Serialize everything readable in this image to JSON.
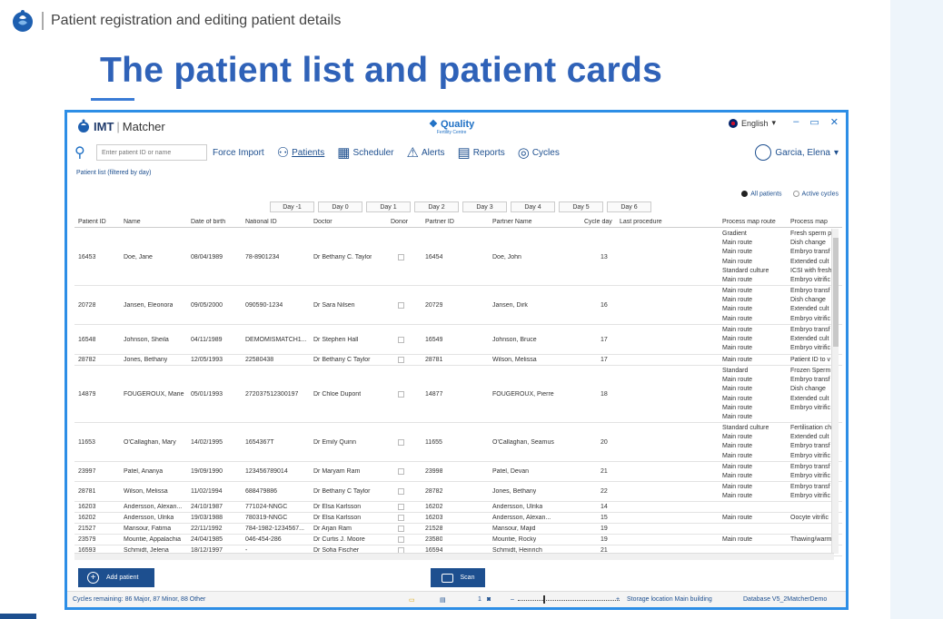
{
  "slide": {
    "subtitle": "Patient registration and editing patient details",
    "title": "The patient list and patient cards"
  },
  "app": {
    "brand_main": "IMT",
    "brand_sub": "Matcher",
    "quality_title": "Quality",
    "quality_sub": "Fertility Centre",
    "language": "English",
    "search_placeholder": "Enter patient ID or name",
    "force_import": "Force Import",
    "nav": [
      {
        "label": "Patients",
        "icon": "patients-icon"
      },
      {
        "label": "Scheduler",
        "icon": "calendar-icon"
      },
      {
        "label": "Alerts",
        "icon": "alert-icon"
      },
      {
        "label": "Reports",
        "icon": "report-icon"
      },
      {
        "label": "Cycles",
        "icon": "cycles-icon"
      }
    ],
    "user": "Garcia, Elena",
    "list_caption": "Patient list (filtered by day)",
    "filter_all": "All patients",
    "filter_active": "Active cycles",
    "days": [
      "Day -1",
      "Day 0",
      "Day 1",
      "Day 2",
      "Day 3",
      "Day 4",
      "Day 5",
      "Day 6"
    ],
    "columns": [
      "Patient ID",
      "Name",
      "Date of birth",
      "National ID",
      "Doctor",
      "Donor",
      "Partner ID",
      "Partner Name",
      "Cycle day",
      "Last procedure",
      "Process map route",
      "Process map"
    ],
    "rows": [
      {
        "id": "16453",
        "name": "Doe, Jane",
        "dob": "08/04/1989",
        "nid": "78-8901234",
        "doctor": "Dr Bethany C. Taylor",
        "pid": "16454",
        "pname": "Doe, John",
        "day": "13",
        "routes": [
          "Gradient",
          "Main route",
          "Main route",
          "Main route",
          "Standard culture",
          "Main route"
        ],
        "maps": [
          "Fresh sperm p",
          "Dish change",
          "Embryo transf",
          "Extended cult",
          "ICSI with fresh",
          "Embryo vitrific"
        ]
      },
      {
        "id": "20728",
        "name": "Jansen, Eleonora",
        "dob": "09/05/2000",
        "nid": "090590-1234",
        "doctor": "Dr Sara Nilsen",
        "pid": "20729",
        "pname": "Jansen, Dirk",
        "day": "16",
        "routes": [
          "Main route",
          "Main route",
          "Main route",
          "Main route"
        ],
        "maps": [
          "Embryo transf",
          "Dish change",
          "Extended cult",
          "Embryo vitrific"
        ]
      },
      {
        "id": "16548",
        "name": "Johnson, Sheila",
        "dob": "04/11/1989",
        "nid": "DEMOMISMATCH1...",
        "doctor": "Dr Stephen Hall",
        "pid": "16549",
        "pname": "Johnson, Bruce",
        "day": "17",
        "routes": [
          "Main route",
          "Main route",
          "Main route"
        ],
        "maps": [
          "Embryo transf",
          "Extended cult",
          "Embryo vitrific"
        ]
      },
      {
        "id": "28782",
        "name": "Jones, Bethany",
        "dob": "12/05/1993",
        "nid": "22580438",
        "doctor": "Dr Bethany C Taylor",
        "pid": "28781",
        "pname": "Wilson, Melissa",
        "day": "17",
        "routes": [
          "Main route"
        ],
        "maps": [
          "Patient ID to v"
        ]
      },
      {
        "id": "14879",
        "name": "FOUGEROUX, Marie",
        "dob": "05/01/1993",
        "nid": "272037512300197",
        "doctor": "Dr Chloe Dupont",
        "pid": "14877",
        "pname": "FOUGEROUX, Pierre",
        "day": "18",
        "routes": [
          "Standard",
          "Main route",
          "Main route",
          "Main route",
          "Main route",
          "Main route"
        ],
        "maps": [
          "Frozen Sperm",
          "Embryo transf",
          "Dish change",
          "Extended cult",
          "Embryo vitrific",
          ""
        ]
      },
      {
        "id": "11653",
        "name": "O'Callaghan, Mary",
        "dob": "14/02/1995",
        "nid": "1654367T",
        "doctor": "Dr Emily Quinn",
        "pid": "11655",
        "pname": "O'Callaghan, Seamus",
        "day": "20",
        "routes": [
          "Standard culture",
          "Main route",
          "Main route",
          "Main route"
        ],
        "maps": [
          "Fertilisation ch",
          "Extended cult",
          "Embryo transf",
          "Embryo vitrific"
        ]
      },
      {
        "id": "23997",
        "name": "Patel, Ananya",
        "dob": "19/09/1990",
        "nid": "123456789014",
        "doctor": "Dr Maryam Ram",
        "pid": "23998",
        "pname": "Patel, Devan",
        "day": "21",
        "routes": [
          "Main route",
          "Main route"
        ],
        "maps": [
          "Embryo transf",
          "Embryo vitrific"
        ]
      },
      {
        "id": "28781",
        "name": "Wilson, Melissa",
        "dob": "11/02/1994",
        "nid": "688479886",
        "doctor": "Dr Bethany C Taylor",
        "pid": "28782",
        "pname": "Jones, Bethany",
        "day": "22",
        "routes": [
          "Main route",
          "Main route"
        ],
        "maps": [
          "Embryo transf",
          "Embryo vitrific"
        ]
      },
      {
        "id": "16203",
        "name": "Andersson, Alexan...",
        "dob": "24/10/1987",
        "nid": "771024-NNGC",
        "doctor": "Dr Elsa Karlsson",
        "pid": "16202",
        "pname": "Andersson, Ulrika",
        "day": "14",
        "routes": [],
        "maps": []
      },
      {
        "id": "16202",
        "name": "Andersson, Ulrika",
        "dob": "19/03/1988",
        "nid": "780319-NNGC",
        "doctor": "Dr Elsa Karlsson",
        "pid": "16203",
        "pname": "Andersson, Alexan...",
        "day": "15",
        "routes": [
          "Main route"
        ],
        "maps": [
          "Oocyte vitrific"
        ]
      },
      {
        "id": "21527",
        "name": "Mansour, Fatima",
        "dob": "22/11/1992",
        "nid": "784-1982-1234567...",
        "doctor": "Dr Arjan Ram",
        "pid": "21528",
        "pname": "Mansour, Majid",
        "day": "19",
        "routes": [],
        "maps": []
      },
      {
        "id": "23579",
        "name": "Mountie, Appalachia",
        "dob": "24/04/1985",
        "nid": "046-454-286",
        "doctor": "Dr Curtis J. Moore",
        "pid": "23580",
        "pname": "Mountie, Rocky",
        "day": "19",
        "routes": [
          "Main route"
        ],
        "maps": [
          "Thawing/warm"
        ]
      },
      {
        "id": "16593",
        "name": "Schmidt, Jelena",
        "dob": "18/12/1997",
        "nid": "-",
        "doctor": "Dr Sofia Fischer",
        "pid": "16594",
        "pname": "Schmidt, Heinrich",
        "day": "21",
        "routes": [],
        "maps": []
      }
    ],
    "add_patient": "Add patient",
    "scan": "Scan",
    "status": {
      "cycles": "Cycles remaining: 86 Major, 87 Minor, 88 Other",
      "page": "1",
      "storage": "Storage location  Main building",
      "database": "Database  V5_2MatcherDemo"
    },
    "colors": {
      "accent": "#2d8ee6",
      "navy": "#1d4f8f",
      "title": "#2f62b8"
    }
  }
}
